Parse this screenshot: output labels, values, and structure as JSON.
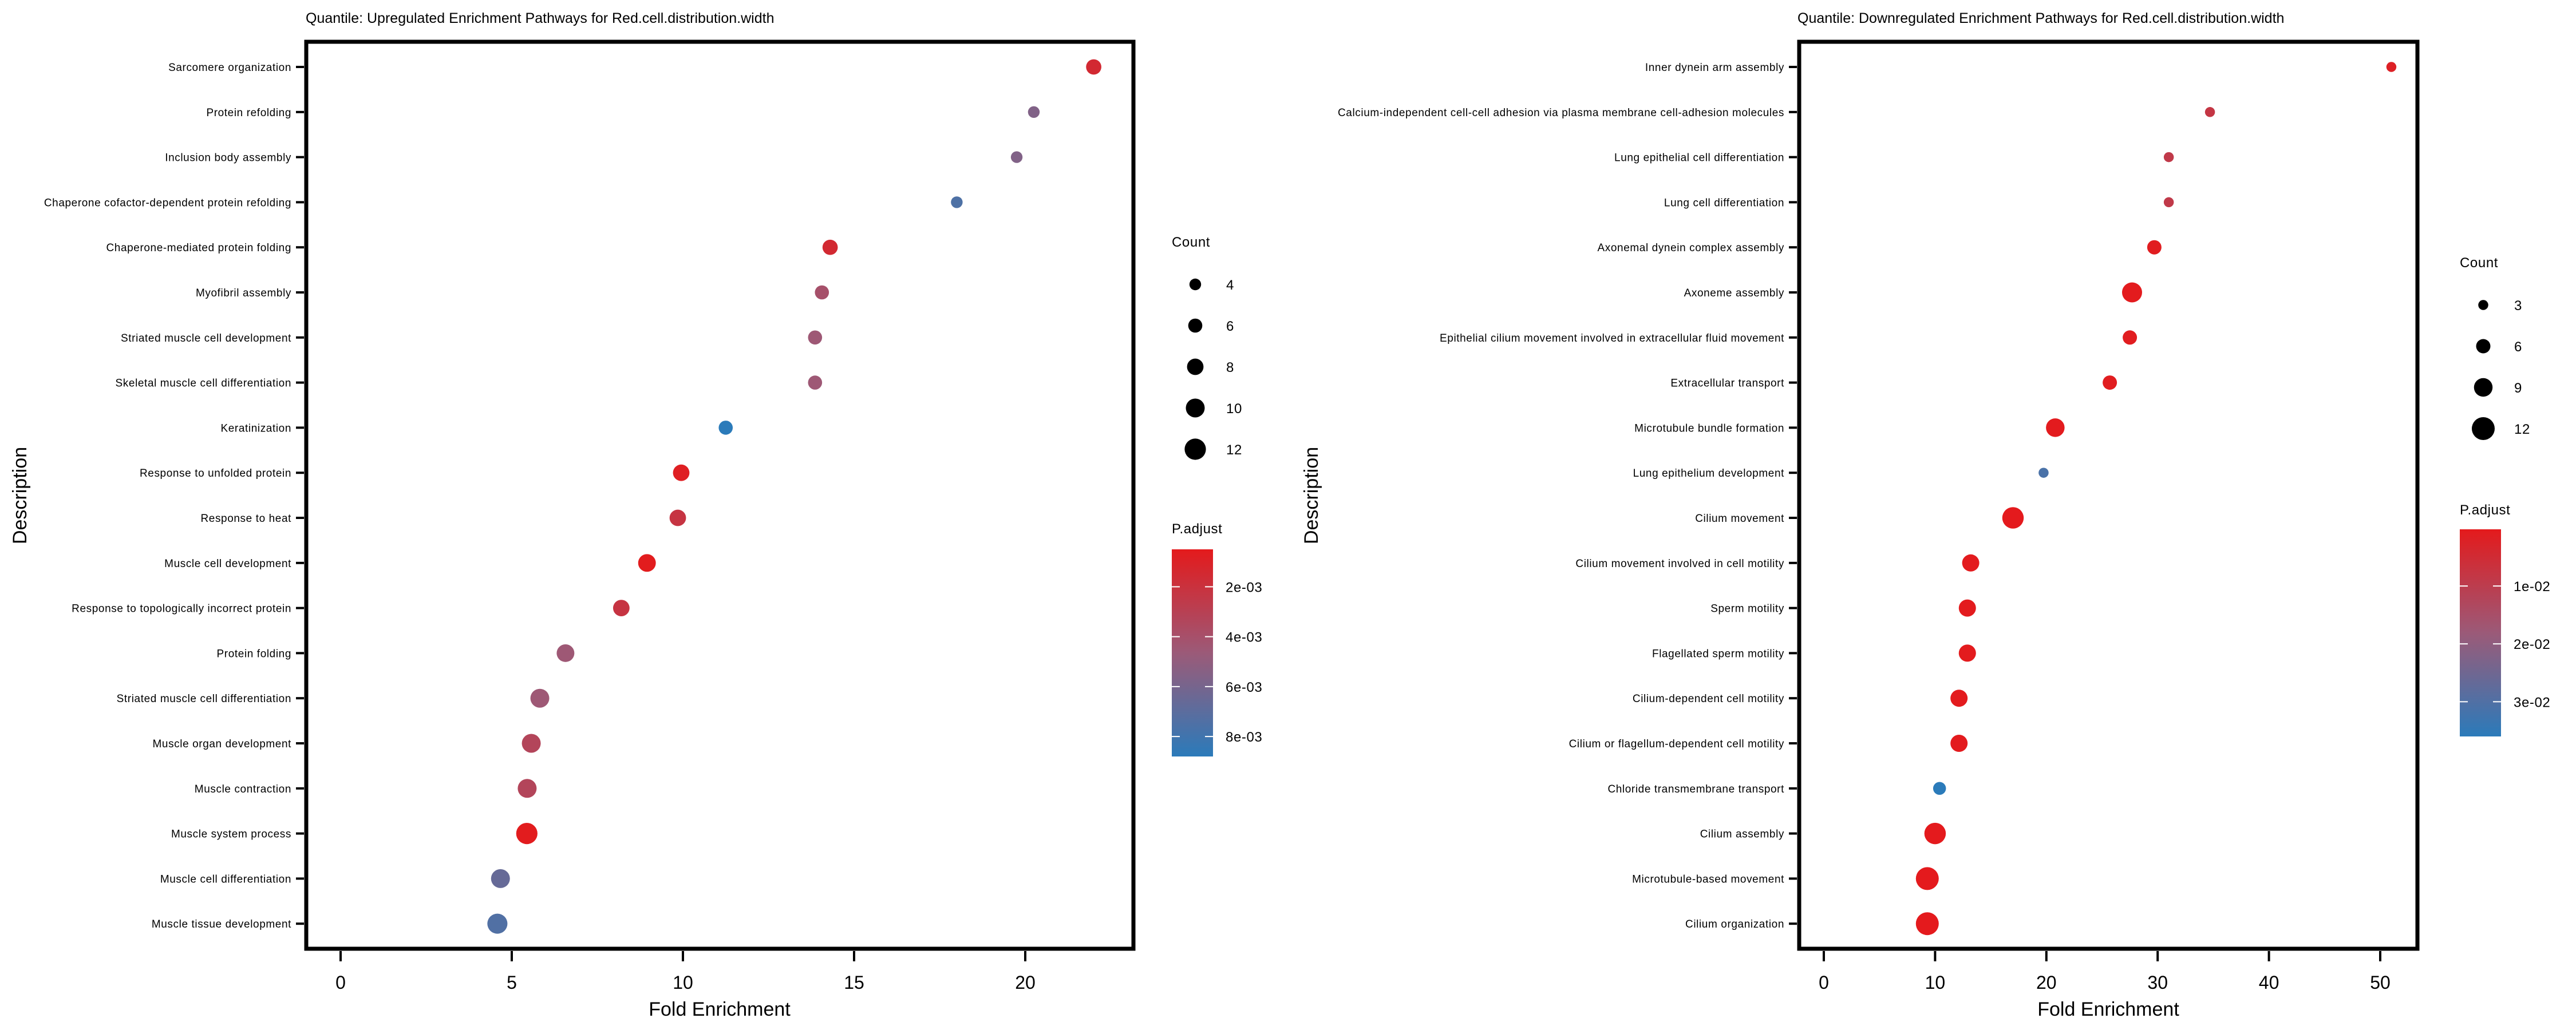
{
  "chart_data": [
    {
      "type": "scatter",
      "title": "Quantile: Upregulated Enrichment Pathways for Red.cell.distribution.width",
      "xlabel": "Fold Enrichment",
      "ylabel": "Description",
      "xlim": [
        -1,
        23.2
      ],
      "xticks": [
        0,
        5,
        10,
        15,
        20
      ],
      "grid": false,
      "legend_position": "right",
      "size_legend": {
        "title": "Count",
        "values": [
          4,
          6,
          8,
          10,
          12
        ]
      },
      "color_legend": {
        "title": "P.adjust",
        "range": [
          0.0005,
          0.0088
        ],
        "ticks": [
          0.002,
          0.004,
          0.006,
          0.008
        ],
        "tick_labels": [
          "2e-03",
          "4e-03",
          "6e-03",
          "8e-03"
        ],
        "low_color": "#e41a1c",
        "high_color": "#2b7bba"
      },
      "points": [
        {
          "label": "Sarcomere organization",
          "x": 22.0,
          "count": 7,
          "p_adjust": 0.0015
        },
        {
          "label": "Protein refolding",
          "x": 20.25,
          "count": 4,
          "p_adjust": 0.0056
        },
        {
          "label": "Inclusion body assembly",
          "x": 19.75,
          "count": 4,
          "p_adjust": 0.0056
        },
        {
          "label": "Chaperone cofactor-dependent protein refolding",
          "x": 18.0,
          "count": 4,
          "p_adjust": 0.0075
        },
        {
          "label": "Chaperone-mediated protein folding",
          "x": 14.3,
          "count": 7,
          "p_adjust": 0.0015
        },
        {
          "label": "Myofibril assembly",
          "x": 14.06,
          "count": 6,
          "p_adjust": 0.004
        },
        {
          "label": "Striated muscle cell development",
          "x": 13.86,
          "count": 6,
          "p_adjust": 0.0045
        },
        {
          "label": "Skeletal muscle cell differentiation",
          "x": 13.86,
          "count": 6,
          "p_adjust": 0.0045
        },
        {
          "label": "Keratinization",
          "x": 11.25,
          "count": 6,
          "p_adjust": 0.0088
        },
        {
          "label": "Response to unfolded protein",
          "x": 9.95,
          "count": 8,
          "p_adjust": 0.0008
        },
        {
          "label": "Response to heat",
          "x": 9.85,
          "count": 8,
          "p_adjust": 0.0022
        },
        {
          "label": "Muscle cell development",
          "x": 8.95,
          "count": 9,
          "p_adjust": 0.0006
        },
        {
          "label": "Response to topologically incorrect protein",
          "x": 8.2,
          "count": 8,
          "p_adjust": 0.0022
        },
        {
          "label": "Protein folding",
          "x": 6.57,
          "count": 9,
          "p_adjust": 0.0045
        },
        {
          "label": "Striated muscle cell differentiation",
          "x": 5.82,
          "count": 10,
          "p_adjust": 0.0045
        },
        {
          "label": "Muscle organ development",
          "x": 5.57,
          "count": 10,
          "p_adjust": 0.0033
        },
        {
          "label": "Muscle contraction",
          "x": 5.45,
          "count": 10,
          "p_adjust": 0.0033
        },
        {
          "label": "Muscle system process",
          "x": 5.44,
          "count": 12,
          "p_adjust": 0.0006
        },
        {
          "label": "Muscle cell differentiation",
          "x": 4.67,
          "count": 10,
          "p_adjust": 0.0066
        },
        {
          "label": "Muscle tissue development",
          "x": 4.58,
          "count": 11,
          "p_adjust": 0.0074
        }
      ]
    },
    {
      "type": "scatter",
      "title": "Quantile: Downregulated Enrichment Pathways for Red.cell.distribution.width",
      "xlabel": "Fold Enrichment",
      "ylabel": "Description",
      "xlim": [
        -2.3,
        53.3
      ],
      "xticks": [
        0,
        10,
        20,
        30,
        40,
        50
      ],
      "grid": false,
      "legend_position": "right",
      "size_legend": {
        "title": "Count",
        "values": [
          3,
          6,
          9,
          12
        ]
      },
      "color_legend": {
        "title": "P.adjust",
        "range": [
          0.0002,
          0.036
        ],
        "ticks": [
          0.01,
          0.02,
          0.03
        ],
        "tick_labels": [
          "1e-02",
          "2e-02",
          "3e-02"
        ],
        "low_color": "#e41a1c",
        "high_color": "#2b7bba"
      },
      "points": [
        {
          "label": "Inner dynein arm assembly",
          "x": 51.0,
          "count": 3,
          "p_adjust": 0.002
        },
        {
          "label": "Calcium-independent cell-cell adhesion via plasma membrane cell-adhesion molecules",
          "x": 34.7,
          "count": 3,
          "p_adjust": 0.008
        },
        {
          "label": "Lung epithelial cell differentiation",
          "x": 31.0,
          "count": 3,
          "p_adjust": 0.009
        },
        {
          "label": "Lung cell differentiation",
          "x": 31.0,
          "count": 3,
          "p_adjust": 0.009
        },
        {
          "label": "Axonemal dynein complex assembly",
          "x": 29.7,
          "count": 6,
          "p_adjust": 0.001
        },
        {
          "label": "Axoneme assembly",
          "x": 27.7,
          "count": 10,
          "p_adjust": 0.0005
        },
        {
          "label": "Epithelial cilium movement involved in extracellular fluid movement",
          "x": 27.5,
          "count": 6,
          "p_adjust": 0.001
        },
        {
          "label": "Extracellular transport",
          "x": 25.7,
          "count": 6,
          "p_adjust": 0.001
        },
        {
          "label": "Microtubule bundle formation",
          "x": 20.8,
          "count": 9,
          "p_adjust": 0.0005
        },
        {
          "label": "Lung epithelium development",
          "x": 19.75,
          "count": 3,
          "p_adjust": 0.031
        },
        {
          "label": "Cilium movement",
          "x": 17.0,
          "count": 11,
          "p_adjust": 0.0003
        },
        {
          "label": "Cilium movement involved in cell motility",
          "x": 13.2,
          "count": 8,
          "p_adjust": 0.0005
        },
        {
          "label": "Sperm motility",
          "x": 12.9,
          "count": 8,
          "p_adjust": 0.0005
        },
        {
          "label": "Flagellated sperm motility",
          "x": 12.9,
          "count": 8,
          "p_adjust": 0.0005
        },
        {
          "label": "Cilium-dependent cell motility",
          "x": 12.15,
          "count": 8,
          "p_adjust": 0.0005
        },
        {
          "label": "Cilium or flagellum-dependent cell motility",
          "x": 12.15,
          "count": 8,
          "p_adjust": 0.0005
        },
        {
          "label": "Chloride transmembrane transport",
          "x": 10.4,
          "count": 5,
          "p_adjust": 0.036
        },
        {
          "label": "Cilium assembly",
          "x": 10.0,
          "count": 11,
          "p_adjust": 0.0003
        },
        {
          "label": "Microtubule-based movement",
          "x": 9.3,
          "count": 12,
          "p_adjust": 0.0003
        },
        {
          "label": "Cilium organization",
          "x": 9.3,
          "count": 12,
          "p_adjust": 0.0003
        }
      ]
    }
  ]
}
